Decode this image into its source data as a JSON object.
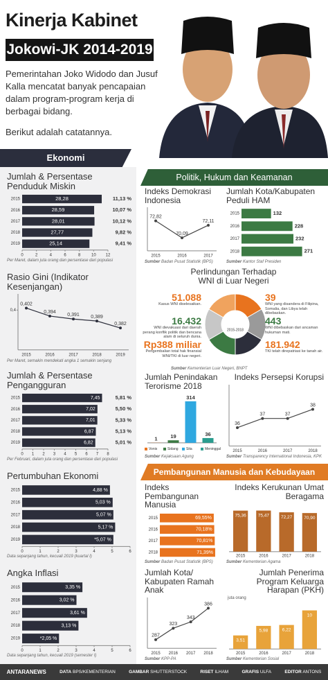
{
  "header": {
    "title": "Kinerja Kabinet",
    "subtitle": "Jokowi-JK 2014-2019",
    "intro": "Pemerintahan Joko Widodo dan Jusuf Kalla mencatat banyak pencapaian dalam program-program kerja di berbagai bidang.",
    "lead": "Berikut adalah catatannya."
  },
  "sections": {
    "economy": "Ekonomi",
    "politics": "Politik, Hukum dan Keamanan",
    "human": "Pembangunan Manusia dan Kebudayaan"
  },
  "source_label": "Sumber",
  "chart_data": [
    {
      "type": "hbar",
      "title": "Jumlah & Persentase Penduduk Miskin",
      "categories": [
        "2015",
        "2016",
        "2017",
        "2018",
        "2019"
      ],
      "values": [
        11.13,
        10.07,
        10.12,
        9.82,
        9.41
      ],
      "value_labels": [
        "11,13 %",
        "10,07 %",
        "10,12 %",
        "9,82 %",
        "9,41 %"
      ],
      "other_values": [
        28.28,
        28.59,
        28.01,
        27.77,
        25.14
      ],
      "other_labels": [
        "28,28",
        "28,59",
        "28,01",
        "27,77",
        "25,14"
      ],
      "value_label_position": "outside",
      "xlim": [
        0,
        12
      ],
      "xticks": [
        0,
        2,
        4,
        6,
        8,
        10,
        12
      ],
      "color": "#2c2e3b",
      "note": "Per Maret, dalam juta orang dan persentase dari populasi"
    },
    {
      "type": "line",
      "title": "Rasio Gini (Indikator Kesenjangan)",
      "categories": [
        "2015",
        "2016",
        "2017",
        "2018",
        "2019"
      ],
      "values": [
        0.402,
        0.394,
        0.391,
        0.389,
        0.382
      ],
      "value_labels": [
        "0,402",
        "0,394",
        "0,391",
        "0,389",
        "0,382"
      ],
      "ylim": [
        0.36,
        0.41
      ],
      "yticks": [
        {
          "value": 0.4,
          "label": "0,4"
        }
      ],
      "color": "#2c2e3b",
      "note": "Per Maret, semakin mendekati angka 1 semakin senjang"
    },
    {
      "type": "hbar",
      "title": "Jumlah & Persentase Pengangguran",
      "categories": [
        "2015",
        "2016",
        "2017",
        "2018",
        "2019"
      ],
      "values": [
        7.45,
        7.02,
        7.01,
        6.87,
        6.82
      ],
      "value_labels": [
        "7,45",
        "7,02",
        "7,01",
        "6,87",
        "6,82"
      ],
      "other_values": [
        5.81,
        5.5,
        5.33,
        5.13,
        5.01
      ],
      "other_labels": [
        "5,81 %",
        "5,50 %",
        "5,33 %",
        "5,13 %",
        "5,01 %"
      ],
      "value_label_position": "inside",
      "xlim": [
        0,
        8
      ],
      "xticks": [
        0,
        1,
        2,
        3,
        4,
        5,
        6,
        7,
        8
      ],
      "color": "#2c2e3b",
      "note": "Per Februari, dalam juta orang dan persentase dari populasi"
    },
    {
      "type": "hbar",
      "title": "Pertumbuhan Ekonomi",
      "categories": [
        "2015",
        "2016",
        "2017",
        "2018",
        "2019"
      ],
      "values": [
        4.88,
        5.03,
        5.07,
        5.17,
        5.07
      ],
      "value_labels": [
        "4,88 %",
        "5,03 %",
        "5,07 %",
        "5,17 %",
        "*5,07 %"
      ],
      "value_label_position": "inside",
      "xlim": [
        0,
        6
      ],
      "xticks": [
        0,
        1,
        2,
        3,
        4,
        5,
        6
      ],
      "color": "#2c2e3b",
      "note": "Data sepanjang tahun, kecuali 2019 (kuartal I)"
    },
    {
      "type": "hbar",
      "title": "Angka Inflasi",
      "categories": [
        "2015",
        "2016",
        "2017",
        "2018",
        "2019"
      ],
      "values": [
        3.35,
        3.02,
        3.61,
        3.13,
        2.05
      ],
      "value_labels": [
        "3,35 %",
        "3,02 %",
        "3,61 %",
        "3,13 %",
        "*2,05 %"
      ],
      "value_label_position": "inside",
      "xlim": [
        0,
        6
      ],
      "xticks": [
        0,
        1,
        2,
        3,
        4,
        5,
        6
      ],
      "color": "#2c2e3b",
      "note": "Data sepanjang tahun, kecuali 2019 (semester I)"
    },
    {
      "type": "line",
      "title": "Indeks Demokrasi Indonesia",
      "categories": [
        "2015",
        "2016",
        "2017"
      ],
      "values": [
        72.82,
        70.09,
        72.11
      ],
      "value_labels": [
        "72,82",
        "70,09",
        "72,11"
      ],
      "ylim": [
        68,
        74
      ],
      "color": "#444444",
      "source": "Badan Pusat Statistik (BPS)"
    },
    {
      "type": "hbar",
      "title": "Jumlah Kota/Kabupaten Peduli HAM",
      "categories": [
        "2015",
        "2016",
        "2017",
        "2018"
      ],
      "values": [
        132,
        228,
        232,
        271
      ],
      "value_label_position": "end",
      "xlim": [
        0,
        300
      ],
      "color": "#3c7a43",
      "source": "Kantor Staf Presiden"
    },
    {
      "type": "bar",
      "title": "Jumlah Penindakan Terorisme 2018",
      "categories": [
        "Vonis",
        "Sidang",
        "Sita",
        "Meninggal"
      ],
      "values": [
        1,
        19,
        314,
        36
      ],
      "colors": [
        "#e8731e",
        "#3c7a43",
        "#2fa8e0",
        "#2a9d8f"
      ],
      "ylim": [
        0,
        340
      ],
      "legend": true,
      "source": "Kejaksaan Agung"
    },
    {
      "type": "line",
      "title": "Indeks Persepsi Korupsi",
      "categories": [
        "2015",
        "2016",
        "2017",
        "2018"
      ],
      "values": [
        36,
        37,
        37,
        38
      ],
      "ylim": [
        34,
        40
      ],
      "color": "#444444",
      "source": "Transparency International Indonesia, KPK"
    },
    {
      "type": "hbar",
      "title": "Indeks Pembangunan Manusia",
      "categories": [
        "2015",
        "2016",
        "2017",
        "2018"
      ],
      "values": [
        69.55,
        70.18,
        70.81,
        71.39
      ],
      "value_labels": [
        "69,55%",
        "70,18%",
        "70,81%",
        "71,39%"
      ],
      "value_label_position": "inside",
      "xlim": [
        0,
        75
      ],
      "color": "#e8731e",
      "source": "Badan Pusat Statistik (BPS)"
    },
    {
      "type": "bar",
      "title": "Indeks Kerukunan Umat Beragama",
      "categories": [
        "2015",
        "2016",
        "2017",
        "2018"
      ],
      "values": [
        75.36,
        75.47,
        72.27,
        70.9
      ],
      "value_labels": [
        "75,36",
        "75,47",
        "72,27",
        "70,90"
      ],
      "label_position": "inside",
      "ylim": [
        0,
        80
      ],
      "color": "#b86a2a",
      "source": "Kementerian Agama"
    },
    {
      "type": "line",
      "title": "Jumlah Kota/ Kabupaten Ramah Anak",
      "categories": [
        "2015",
        "2016",
        "2017",
        "2018"
      ],
      "values": [
        287,
        323,
        343,
        386
      ],
      "ylim": [
        260,
        400
      ],
      "color": "#444444",
      "source": "KPP-PA"
    },
    {
      "type": "bar",
      "title": "Jumlah Penerima Program Keluarga Harapan (PKH)",
      "unit": "juta orang",
      "categories": [
        "2015",
        "2016",
        "2017",
        "2018"
      ],
      "values": [
        3.51,
        5.98,
        6.22,
        10
      ],
      "value_labels": [
        "3,51",
        "5,98",
        "6,22",
        "10"
      ],
      "label_position": "inside",
      "ylim": [
        0,
        11
      ],
      "color": "#e8a33a",
      "source": "Kementerian Sosial"
    }
  ],
  "wni": {
    "title": "Perlindungan Terhadap WNI di Luar Negeri",
    "center": "2015-2018",
    "items": [
      {
        "value": "51.088",
        "text": "Kasus WNI diselesaikan.",
        "color": "#e8731e"
      },
      {
        "value": "16.432",
        "text": "WNI dievakuasi dari daerah perang konflik politik dan bencana alam di seluruh dunia.",
        "color": "#3c7a43"
      },
      {
        "value": "Rp388 miliar",
        "text": "Pengembalian total hak finansial WNI/TKI di luar negeri.",
        "color": "#e8731e"
      },
      {
        "value": "39",
        "text": "WNI yang disandera di Filipina, Somalia, dan Libya telah dibebaskan.",
        "color": "#e8731e"
      },
      {
        "value": "443",
        "text": "WNI dibebaskan dari ancaman hukuman mati.",
        "color": "#3c7a43"
      },
      {
        "value": "181.942",
        "text": "TKI telah direpatriasi ke tanah air.",
        "color": "#e8731e"
      }
    ],
    "source": "Kementerian Luar Negeri, BNPT"
  },
  "footer": {
    "brand": "ANTARANEWS",
    "credits": [
      {
        "role": "DATA",
        "name": "BPS/KEMENTERIAN"
      },
      {
        "role": "GAMBAR",
        "name": "SHUTTERSTOCK"
      },
      {
        "role": "RISET",
        "name": "ILHAM"
      },
      {
        "role": "GRAFIS",
        "name": "ULFA"
      },
      {
        "role": "EDITOR",
        "name": "ANTONS"
      }
    ]
  }
}
